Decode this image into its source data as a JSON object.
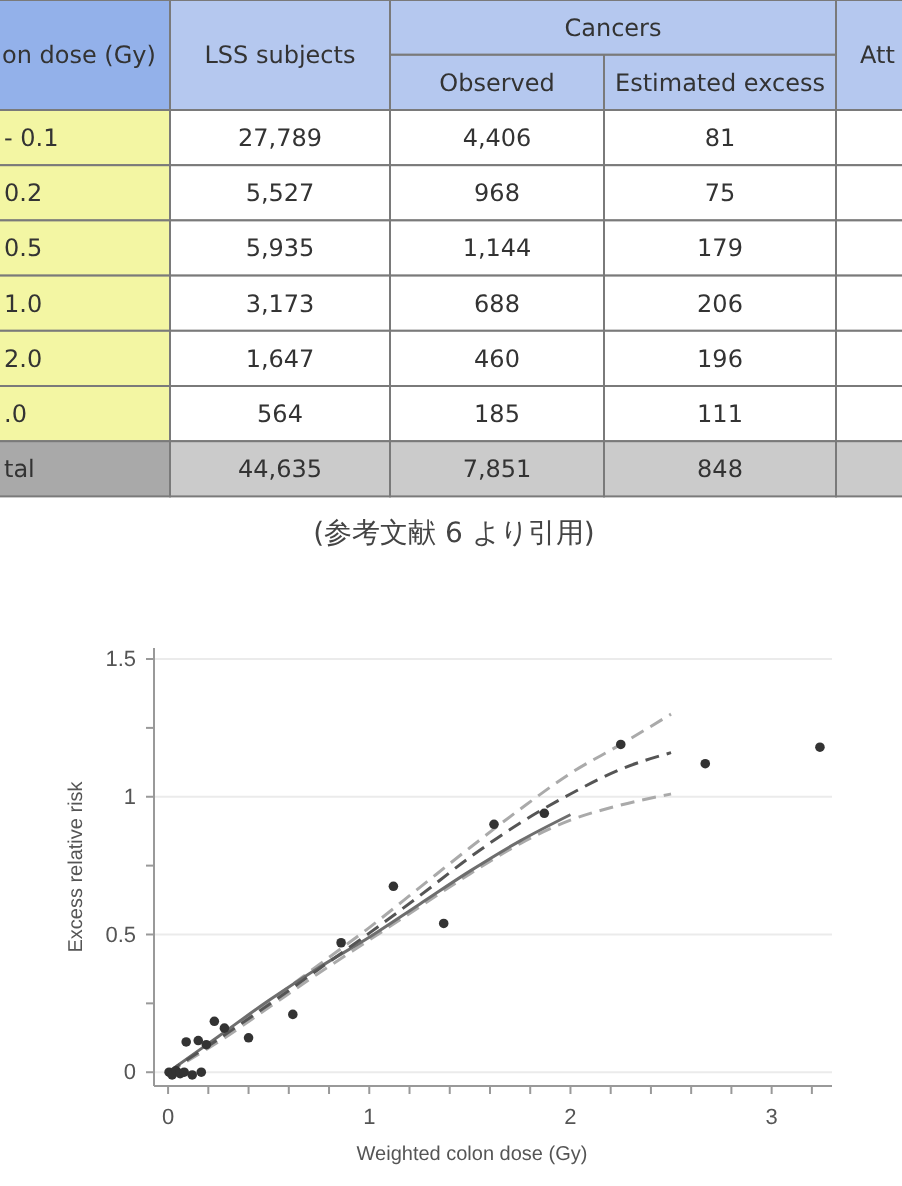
{
  "chart_data": [
    {
      "type": "other",
      "ylabel": "on dose (Gy)",
      "legend_title": "Cancers",
      "categories": [
        "- 0.1",
        "0.2",
        "0.5",
        "1.0",
        "2.0",
        ".0",
        "tal"
      ],
      "series": [
        {
          "name": "LSS subjects",
          "values": [
            27789,
            5527,
            5935,
            3173,
            1647,
            564,
            44635
          ],
          "value_labels": [
            "27,789",
            "5,527",
            "5,935",
            "3,173",
            "1,647",
            "564",
            "44,635"
          ],
          "colors": [
            "#ffffff",
            "#ffffff",
            "#ffffff",
            "#ffffff",
            "#ffffff",
            "#ffffff",
            "#cbcbcb"
          ]
        },
        {
          "name": "Observed",
          "values": [
            4406,
            968,
            1144,
            688,
            460,
            185,
            7851
          ],
          "value_labels": [
            "4,406",
            "968",
            "1,144",
            "688",
            "460",
            "185",
            "7,851"
          ],
          "colors": [
            "#ffffff",
            "#ffffff",
            "#ffffff",
            "#ffffff",
            "#ffffff",
            "#ffffff",
            "#cbcbcb"
          ]
        },
        {
          "name": "Estimated excess",
          "values": [
            81,
            75,
            179,
            206,
            196,
            111,
            848
          ],
          "value_labels": [
            "81",
            "75",
            "179",
            "206",
            "196",
            "111",
            "848"
          ],
          "colors": [
            "#ffffff",
            "#ffffff",
            "#ffffff",
            "#ffffff",
            "#ffffff",
            "#ffffff",
            "#cbcbcb"
          ]
        },
        {
          "name": "Att",
          "values": [
            null,
            null,
            null,
            null,
            null,
            null,
            null
          ],
          "colors": [
            "#ffffff",
            "#ffffff",
            "#ffffff",
            "#ffffff",
            "#ffffff",
            "#ffffff",
            "#cbcbcb"
          ]
        }
      ],
      "annotations": [
        "(参考文献 6 より引用)"
      ]
    },
    {
      "type": "scatter",
      "xlabel": "Weighted colon dose (Gy)",
      "ylabel": "Excess relative risk",
      "xlim": [
        -0.07,
        3.3
      ],
      "ylim": [
        -0.05,
        1.54
      ],
      "xticks": [
        0,
        {
          "value": 0.2,
          "label": null
        },
        {
          "value": 0.4,
          "label": null
        },
        {
          "value": 0.6,
          "label": null
        },
        {
          "value": 0.8,
          "label": null
        },
        1,
        {
          "value": 1.2,
          "label": null
        },
        {
          "value": 1.4,
          "label": null
        },
        {
          "value": 1.6,
          "label": null
        },
        {
          "value": 1.8,
          "label": null
        },
        2,
        {
          "value": 2.2,
          "label": null
        },
        {
          "value": 2.4,
          "label": null
        },
        {
          "value": 2.6,
          "label": null
        },
        {
          "value": 2.8,
          "label": null
        },
        3,
        {
          "value": 3.2,
          "label": null
        }
      ],
      "yticks": [
        0,
        {
          "value": 0.25,
          "label": null
        },
        0.5,
        {
          "value": 0.75,
          "label": null
        },
        1,
        {
          "value": 1.25,
          "label": null
        },
        1.5
      ],
      "grid": "y",
      "series": [
        {
          "type": "line",
          "line_style": "dashed",
          "color": "#aaaaaa",
          "x": [
            0,
            0.25,
            0.5,
            0.75,
            1.0,
            1.25,
            1.5,
            1.75,
            2.0,
            2.25,
            2.5
          ],
          "values": [
            0,
            0.125,
            0.255,
            0.39,
            0.525,
            0.67,
            0.815,
            0.955,
            1.085,
            1.19,
            1.3
          ]
        },
        {
          "type": "line",
          "line_style": "dashed",
          "color": "#aaaaaa",
          "x": [
            0,
            0.25,
            0.5,
            0.75,
            1.0,
            1.25,
            1.5,
            1.75,
            2.0,
            2.25,
            2.5
          ],
          "values": [
            0,
            0.11,
            0.235,
            0.36,
            0.48,
            0.6,
            0.72,
            0.83,
            0.915,
            0.97,
            1.01
          ]
        },
        {
          "type": "line",
          "line_style": "solid",
          "color": "#6e6e6e",
          "x": [
            0,
            0.25,
            0.5,
            0.75,
            1.0,
            1.25,
            1.5,
            1.75,
            2.0
          ],
          "values": [
            0,
            0.13,
            0.26,
            0.38,
            0.49,
            0.61,
            0.73,
            0.84,
            0.935
          ]
        },
        {
          "type": "line",
          "line_style": "dashed",
          "color": "#555555",
          "x": [
            0,
            0.25,
            0.5,
            0.75,
            1.0,
            1.25,
            1.5,
            1.75,
            2.0,
            2.25,
            2.5
          ],
          "values": [
            0,
            0.12,
            0.245,
            0.375,
            0.505,
            0.64,
            0.78,
            0.905,
            1.01,
            1.1,
            1.16
          ]
        },
        {
          "type": "scatter",
          "marker": "circle",
          "color": "#333333",
          "x": [
            0.005,
            0.02,
            0.04,
            0.06,
            0.08,
            0.12,
            0.165,
            0.09,
            0.15,
            0.19,
            0.23,
            0.28,
            0.4,
            0.62,
            0.86,
            1.12,
            1.37,
            1.62,
            1.87,
            2.25,
            2.67,
            3.24
          ],
          "values": [
            0,
            -0.01,
            0.005,
            -0.005,
            0,
            -0.01,
            0,
            0.11,
            0.115,
            0.1,
            0.185,
            0.16,
            0.125,
            0.21,
            0.47,
            0.675,
            0.54,
            0.9,
            0.94,
            1.19,
            1.12,
            1.18
          ]
        }
      ]
    }
  ]
}
